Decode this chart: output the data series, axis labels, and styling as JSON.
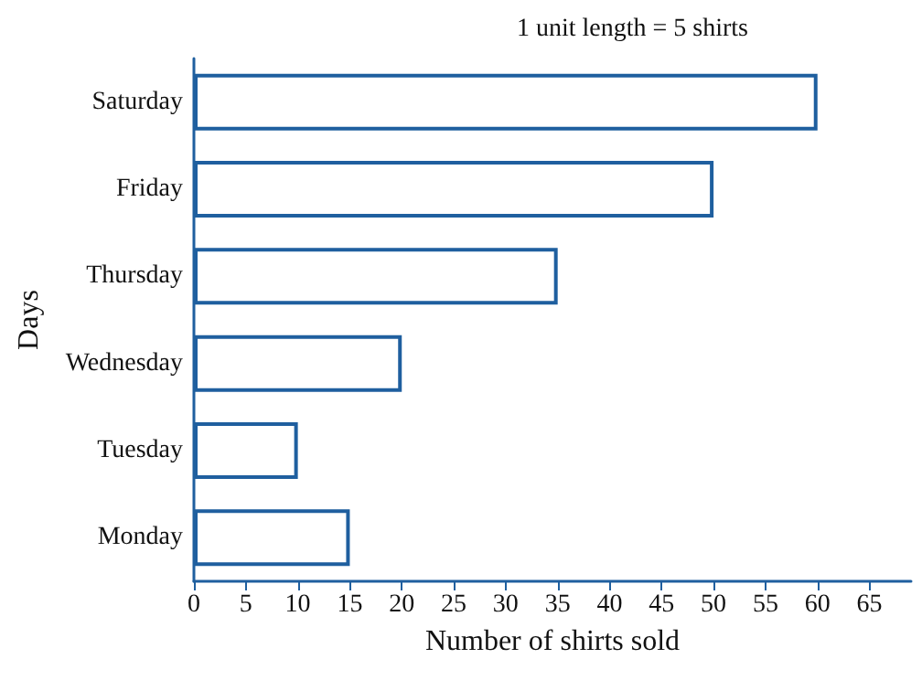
{
  "chart_data": {
    "type": "bar",
    "orientation": "horizontal",
    "categories": [
      "Saturday",
      "Friday",
      "Thursday",
      "Wednesday",
      "Tuesday",
      "Monday"
    ],
    "values": [
      60,
      50,
      35,
      20,
      10,
      15
    ],
    "color": "#1f5f9f",
    "xlabel": "Number of shirts sold",
    "ylabel": "Days",
    "annotations": [
      "1 unit length = 5 shirts"
    ],
    "xlim": [
      0,
      69
    ],
    "xticks": [
      0,
      5,
      10,
      15,
      20,
      25,
      30,
      35,
      40,
      45,
      50,
      55,
      60,
      65
    ],
    "grid": false
  }
}
